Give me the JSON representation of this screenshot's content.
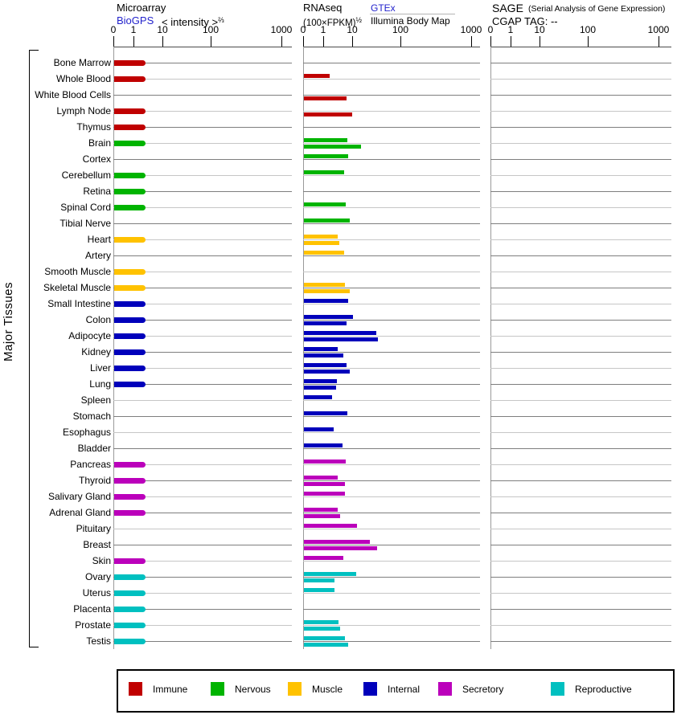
{
  "side_label": "Major Tissues",
  "header": {
    "microarray": {
      "title": "Microarray",
      "link": "BioGPS",
      "xlabel": "< intensity >",
      "xlabel_exp": "⅔"
    },
    "rnaseq": {
      "title": "RNAseq",
      "xlabel": "(100×FPKM)",
      "xlabel_exp": "½",
      "link": "GTEx",
      "source2": "Illumina Body Map"
    },
    "sage": {
      "title": "SAGE",
      "subtitle": "(Serial Analysis of Gene Expression)",
      "tag_line": "CGAP TAG:  --"
    }
  },
  "axis_ticks": [
    "0",
    "1",
    "10",
    "100",
    "1000"
  ],
  "colors": {
    "immune": "#c00000",
    "nervous": "#00b400",
    "muscle": "#ffc200",
    "internal": "#0000bb",
    "secretory": "#bb00bb",
    "reproductive": "#00c0c0"
  },
  "legend": [
    {
      "label": "Immune",
      "color": "#c00000"
    },
    {
      "label": "Nervous",
      "color": "#00b400"
    },
    {
      "label": "Muscle",
      "color": "#ffc200"
    },
    {
      "label": "Internal",
      "color": "#0000bb"
    },
    {
      "label": "Secretory",
      "color": "#bb00bb"
    },
    {
      "label": "Reproductive",
      "color": "#00c0c0"
    }
  ],
  "chart_data": {
    "type": "bar",
    "orientation": "horizontal",
    "panels": [
      {
        "title": "Microarray",
        "source": "BioGPS",
        "xlabel": "< intensity >^(2/3)",
        "ticks": [
          0,
          1,
          10,
          100,
          1000
        ]
      },
      {
        "title": "RNAseq",
        "xlabel": "(100×FPKM)^(1/2)",
        "sources": [
          "GTEx",
          "Illumina Body Map"
        ],
        "ticks": [
          0,
          1,
          10,
          100,
          1000
        ]
      },
      {
        "title": "SAGE",
        "subtitle": "(Serial Analysis of Gene Expression)",
        "note": "CGAP TAG: --",
        "ticks": [
          0,
          1,
          10,
          100,
          1000
        ],
        "values": "none"
      }
    ],
    "rows": [
      {
        "tissue": "Bone Marrow",
        "category": "immune",
        "microarray": 2.5,
        "gtex": null,
        "illumina": null
      },
      {
        "tissue": "Whole Blood",
        "category": "immune",
        "microarray": 2.5,
        "gtex": 1.6,
        "illumina": null
      },
      {
        "tissue": "White Blood Cells",
        "category": "immune",
        "microarray": null,
        "gtex": null,
        "illumina": 6
      },
      {
        "tissue": "Lymph Node",
        "category": "immune",
        "microarray": 2.5,
        "gtex": null,
        "illumina": 9.4
      },
      {
        "tissue": "Thymus",
        "category": "immune",
        "microarray": 2.5,
        "gtex": null,
        "illumina": null
      },
      {
        "tissue": "Brain",
        "category": "nervous",
        "microarray": 2.5,
        "gtex": 6.4,
        "illumina": 14.7
      },
      {
        "tissue": "Cortex",
        "category": "nervous",
        "microarray": null,
        "gtex": 6.8,
        "illumina": null
      },
      {
        "tissue": "Cerebellum",
        "category": "nervous",
        "microarray": 2.5,
        "gtex": 4.9,
        "illumina": null
      },
      {
        "tissue": "Retina",
        "category": "nervous",
        "microarray": 2.5,
        "gtex": null,
        "illumina": null
      },
      {
        "tissue": "Spinal Cord",
        "category": "nervous",
        "microarray": 2.5,
        "gtex": 5.6,
        "illumina": null
      },
      {
        "tissue": "Tibial Nerve",
        "category": "nervous",
        "microarray": null,
        "gtex": 7.7,
        "illumina": null
      },
      {
        "tissue": "Heart",
        "category": "muscle",
        "microarray": 2.5,
        "gtex": 3.0,
        "illumina": 3.4
      },
      {
        "tissue": "Artery",
        "category": "muscle",
        "microarray": null,
        "gtex": 5.0,
        "illumina": null
      },
      {
        "tissue": "Smooth Muscle",
        "category": "muscle",
        "microarray": 2.5,
        "gtex": null,
        "illumina": null
      },
      {
        "tissue": "Skeletal Muscle",
        "category": "muscle",
        "microarray": 2.5,
        "gtex": 5.3,
        "illumina": 7.7
      },
      {
        "tissue": "Small Intestine",
        "category": "internal",
        "microarray": 2.5,
        "gtex": 6.8,
        "illumina": null
      },
      {
        "tissue": "Colon",
        "category": "internal",
        "microarray": 2.5,
        "gtex": 10,
        "illumina": 6
      },
      {
        "tissue": "Adipocyte",
        "category": "internal",
        "microarray": 2.5,
        "gtex": 30,
        "illumina": 33
      },
      {
        "tissue": "Kidney",
        "category": "internal",
        "microarray": 2.5,
        "gtex": 3.0,
        "illumina": 4.6
      },
      {
        "tissue": "Liver",
        "category": "internal",
        "microarray": 2.5,
        "gtex": 6.0,
        "illumina": 7.7
      },
      {
        "tissue": "Lung",
        "category": "internal",
        "microarray": 2.5,
        "gtex": 2.8,
        "illumina": 2.6
      },
      {
        "tissue": "Spleen",
        "category": "internal",
        "microarray": null,
        "gtex": 1.9,
        "illumina": null
      },
      {
        "tissue": "Stomach",
        "category": "internal",
        "microarray": null,
        "gtex": 6.4,
        "illumina": null
      },
      {
        "tissue": "Esophagus",
        "category": "internal",
        "microarray": null,
        "gtex": 2.2,
        "illumina": null
      },
      {
        "tissue": "Bladder",
        "category": "internal",
        "microarray": null,
        "gtex": 4.3,
        "illumina": null
      },
      {
        "tissue": "Pancreas",
        "category": "secretory",
        "microarray": 2.5,
        "gtex": 5.6,
        "illumina": null
      },
      {
        "tissue": "Thyroid",
        "category": "secretory",
        "microarray": 2.5,
        "gtex": 3.0,
        "illumina": 5.3
      },
      {
        "tissue": "Salivary Gland",
        "category": "secretory",
        "microarray": 2.5,
        "gtex": 5.3,
        "illumina": null
      },
      {
        "tissue": "Adrenal Gland",
        "category": "secretory",
        "microarray": 2.5,
        "gtex": 3.0,
        "illumina": 3.6
      },
      {
        "tissue": "Pituitary",
        "category": "secretory",
        "microarray": null,
        "gtex": 12,
        "illumina": null
      },
      {
        "tissue": "Breast",
        "category": "secretory",
        "microarray": null,
        "gtex": 22,
        "illumina": 32
      },
      {
        "tissue": "Skin",
        "category": "secretory",
        "microarray": 2.5,
        "gtex": 4.6,
        "illumina": null
      },
      {
        "tissue": "Ovary",
        "category": "reproductive",
        "microarray": 2.5,
        "gtex": 11.7,
        "illumina": 2.3
      },
      {
        "tissue": "Uterus",
        "category": "reproductive",
        "microarray": 2.5,
        "gtex": 2.3,
        "illumina": null
      },
      {
        "tissue": "Placenta",
        "category": "reproductive",
        "microarray": 2.5,
        "gtex": null,
        "illumina": null
      },
      {
        "tissue": "Prostate",
        "category": "reproductive",
        "microarray": 2.5,
        "gtex": 3.2,
        "illumina": 3.6
      },
      {
        "tissue": "Testis",
        "category": "reproductive",
        "microarray": 2.5,
        "gtex": 5.3,
        "illumina": 6.8
      }
    ]
  }
}
